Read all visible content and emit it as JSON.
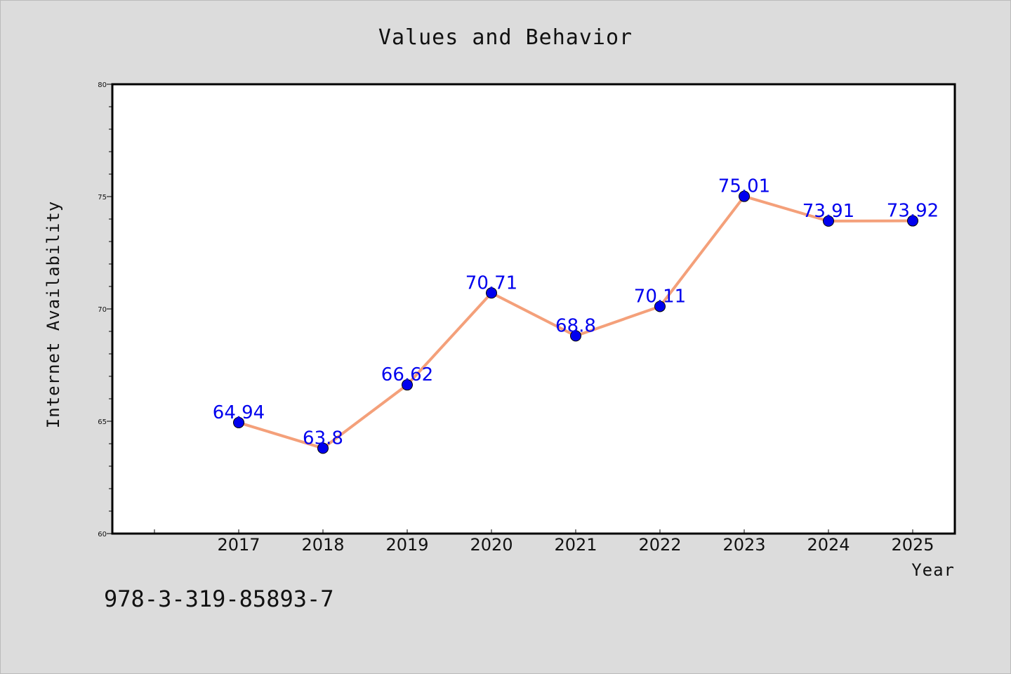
{
  "chart_data": {
    "type": "line",
    "title": "Values and Behavior",
    "xlabel": "Year",
    "ylabel": "Internet Availability",
    "categories": [
      "2017",
      "2018",
      "2019",
      "2020",
      "2021",
      "2022",
      "2023",
      "2024",
      "2025"
    ],
    "series": [
      {
        "values": [
          64.94,
          63.8,
          66.62,
          70.71,
          68.8,
          70.11,
          75.01,
          73.91,
          73.92
        ],
        "data_labels": [
          "64.94",
          "63.8",
          "66.62",
          "70.71",
          "68.8",
          "70.11",
          "75.01",
          "73.91",
          "73.92"
        ],
        "line_color": "#f4a07a",
        "marker_color": "#0000ee"
      }
    ],
    "ylim": [
      60,
      80
    ],
    "yticks": [
      "60",
      "65",
      "70",
      "75",
      "80"
    ],
    "grid": false,
    "legend": "none"
  },
  "footer": {
    "code": "978-3-319-85893-7"
  },
  "colors": {
    "background": "#dcdcdc",
    "plot_area": "#ffffff",
    "line": "#f4a07a",
    "marker": "#0000ee",
    "data_label": "#0000ee"
  }
}
